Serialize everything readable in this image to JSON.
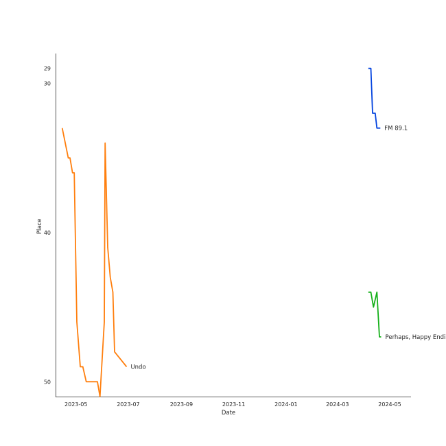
{
  "chart_data": {
    "type": "line",
    "title": "",
    "xlabel": "Date",
    "ylabel": "Place",
    "y_inverted": true,
    "ylim": [
      51,
      28
    ],
    "xlim": [
      "2023-04-08",
      "2024-05-25"
    ],
    "x_ticks": [
      "2023-05",
      "2023-07",
      "2023-09",
      "2023-11",
      "2024-01",
      "2024-03",
      "2024-05"
    ],
    "y_ticks": [
      29,
      30,
      40,
      50
    ],
    "grid": false,
    "series": [
      {
        "name": "Undo",
        "color": "#ff7f0e",
        "x": [
          "2023-04-15",
          "2023-04-22",
          "2023-04-24",
          "2023-04-27",
          "2023-04-29",
          "2023-05-02",
          "2023-05-06",
          "2023-05-09",
          "2023-05-13",
          "2023-05-20",
          "2023-05-26",
          "2023-05-29",
          "2023-06-03",
          "2023-06-04",
          "2023-06-07",
          "2023-06-10",
          "2023-06-13",
          "2023-06-15",
          "2023-06-29"
        ],
        "y": [
          33,
          35,
          35,
          36,
          36,
          46,
          49,
          49,
          50,
          50,
          50,
          51,
          46,
          34,
          41,
          43,
          44,
          48,
          49
        ]
      },
      {
        "name": "FM 89.1",
        "color": "#0343df",
        "x": [
          "2024-04-06",
          "2024-04-09",
          "2024-04-11",
          "2024-04-14",
          "2024-04-16",
          "2024-04-20"
        ],
        "y": [
          29,
          29,
          32,
          32,
          33,
          33
        ]
      },
      {
        "name": "Perhaps, Happy Ending",
        "color": "#15b01a",
        "x": [
          "2024-04-06",
          "2024-04-09",
          "2024-04-12",
          "2024-04-16",
          "2024-04-19",
          "2024-04-21"
        ],
        "y": [
          44,
          44,
          45,
          44,
          47,
          47
        ]
      }
    ]
  }
}
